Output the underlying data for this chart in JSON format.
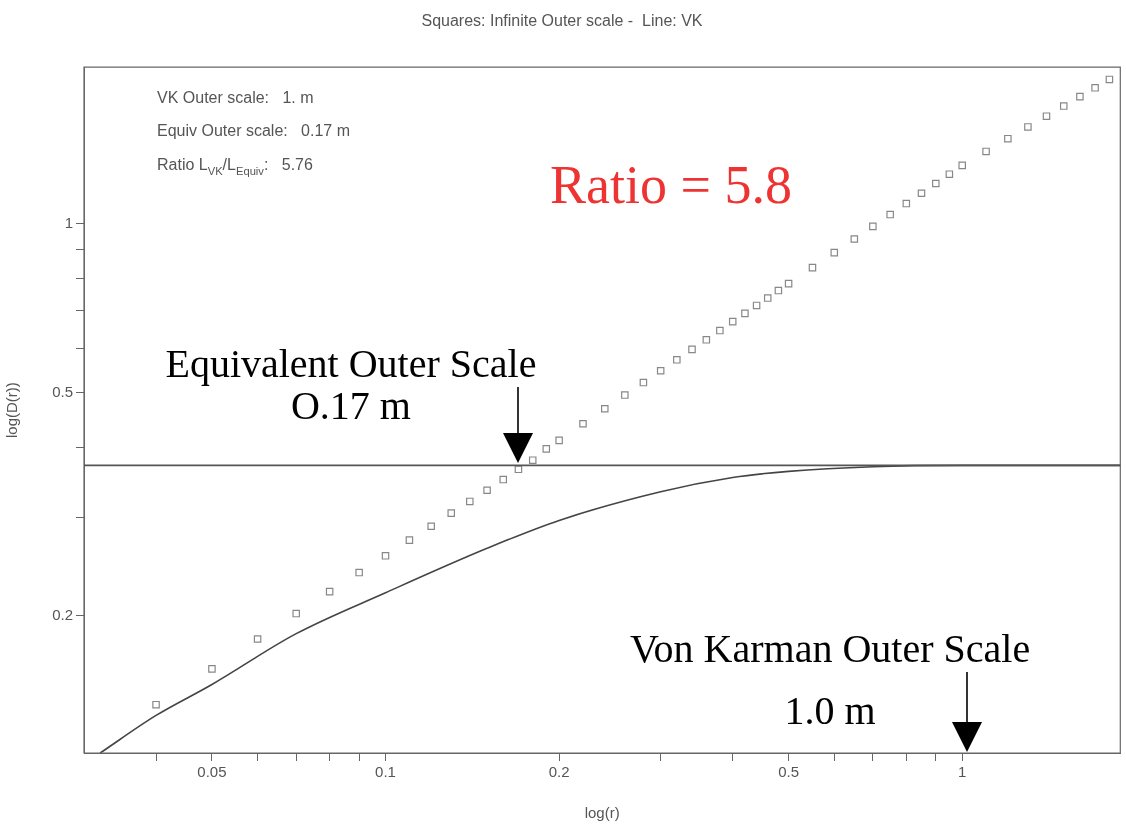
{
  "chart_data": {
    "type": "scatter",
    "title": "Squares: Infinite Outer scale -  Line: VK",
    "xlabel": "log(r)",
    "ylabel": "log(D(r))",
    "log": "xy",
    "grid": false,
    "legend": false,
    "xlim": [
      0.03,
      1.88
    ],
    "ylim": [
      0.114,
      1.9
    ],
    "xticks": [
      {
        "value": 0.04,
        "label": null
      },
      0.05,
      {
        "value": 0.06,
        "label": null
      },
      {
        "value": 0.07,
        "label": null
      },
      {
        "value": 0.08,
        "label": null
      },
      {
        "value": 0.09,
        "label": null
      },
      0.1,
      0.2,
      {
        "value": 0.3,
        "label": null
      },
      {
        "value": 0.4,
        "label": null
      },
      0.5,
      {
        "value": 0.6,
        "label": null
      },
      {
        "value": 0.7,
        "label": null
      },
      {
        "value": 0.8,
        "label": null
      },
      {
        "value": 0.9,
        "label": null
      },
      1
    ],
    "yticks": [
      0.2,
      {
        "value": 0.3,
        "label": null
      },
      {
        "value": 0.4,
        "label": null
      },
      0.5,
      {
        "value": 0.6,
        "label": null
      },
      {
        "value": 0.7,
        "label": null
      },
      {
        "value": 0.8,
        "label": null
      },
      {
        "value": 0.9,
        "label": null
      },
      1
    ],
    "ref_lines": [
      {
        "axis": "y",
        "value": 0.371,
        "color": "#555555"
      }
    ],
    "annotations": [
      "VK Outer scale:   1. m",
      "Equiv Outer scale:   0.17 m",
      "Ratio L$_{VK}$/L$_{Equiv}$:   5.76",
      "Ratio = 5.8",
      {
        "text": "Equivalent Outer Scale\nO.17 m",
        "x": 0.17,
        "y": 0.371
      },
      "Von Karman Outer Scale\n1.0 m"
    ],
    "series": [
      {
        "type": "scatter",
        "marker": "square",
        "color": "#888888",
        "x": [
          0.04,
          0.05,
          0.06,
          0.07,
          0.08,
          0.09,
          0.1,
          0.11,
          0.12,
          0.13,
          0.14,
          0.15,
          0.16,
          0.17,
          0.18,
          0.19,
          0.2,
          0.22,
          0.24,
          0.26,
          0.28,
          0.3,
          0.32,
          0.34,
          0.36,
          0.38,
          0.4,
          0.42,
          0.44,
          0.46,
          0.48,
          0.5,
          0.55,
          0.6,
          0.65,
          0.7,
          0.75,
          0.8,
          0.85,
          0.9,
          0.95,
          1,
          1.1,
          1.2,
          1.3,
          1.4,
          1.5,
          1.6,
          1.7,
          1.8
        ],
        "values": [
          0.139,
          0.161,
          0.182,
          0.202,
          0.221,
          0.239,
          0.256,
          0.273,
          0.289,
          0.305,
          0.32,
          0.335,
          0.35,
          0.365,
          0.379,
          0.397,
          0.411,
          0.44,
          0.468,
          0.495,
          0.521,
          0.547,
          0.572,
          0.597,
          0.621,
          0.645,
          0.669,
          0.692,
          0.715,
          0.737,
          0.76,
          0.782,
          0.835,
          0.888,
          0.939,
          0.989,
          1.038,
          1.086,
          1.133,
          1.179,
          1.225,
          1.27,
          1.345,
          1.417,
          1.487,
          1.554,
          1.62,
          1.684,
          1.746,
          1.807
        ]
      },
      {
        "type": "line",
        "marker": "none",
        "color": "#444444",
        "x": [
          0.032,
          0.04,
          0.05,
          0.07,
          0.1,
          0.15,
          0.2,
          0.3,
          0.4,
          0.5,
          0.7,
          1,
          1.88
        ],
        "values": [
          0.114,
          0.133,
          0.151,
          0.186,
          0.22,
          0.264,
          0.296,
          0.333,
          0.353,
          0.362,
          0.369,
          0.371,
          0.371
        ]
      }
    ]
  }
}
